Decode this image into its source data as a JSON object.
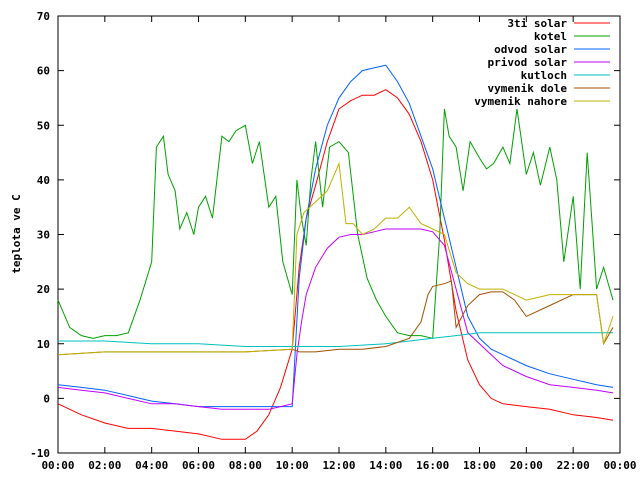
{
  "chart_data": {
    "type": "line",
    "title": "",
    "xlabel": "",
    "ylabel": "teplota ve C",
    "xlim": [
      0,
      24
    ],
    "ylim": [
      -10,
      70
    ],
    "xticks": [
      "00:00",
      "02:00",
      "04:00",
      "06:00",
      "08:00",
      "10:00",
      "12:00",
      "14:00",
      "16:00",
      "18:00",
      "20:00",
      "22:00",
      "00:00"
    ],
    "yticks": [
      "-10",
      "0",
      "10",
      "20",
      "30",
      "40",
      "50",
      "60",
      "70"
    ],
    "legend_position": "top-right",
    "grid": false,
    "series": [
      {
        "name": "3ti solar",
        "color": "#ff0000",
        "x": [
          0,
          1,
          2,
          3,
          4,
          5,
          6,
          7,
          8,
          8.5,
          9,
          9.5,
          10,
          10.3,
          10.6,
          11,
          11.5,
          12,
          12.5,
          13,
          13.5,
          14,
          14.5,
          15,
          15.5,
          16,
          16.5,
          17,
          17.5,
          18,
          18.5,
          19,
          20,
          21,
          22,
          23,
          23.7
        ],
        "y": [
          -1,
          -3,
          -4.5,
          -5.5,
          -5.5,
          -6,
          -6.5,
          -7.5,
          -7.5,
          -6,
          -3,
          2,
          9,
          24,
          33,
          39,
          47,
          53,
          54.5,
          55.5,
          55.5,
          56.5,
          55,
          52,
          47,
          40,
          29,
          16,
          7,
          2.5,
          0,
          -1,
          -1.5,
          -2,
          -3,
          -3.5,
          -4
        ]
      },
      {
        "name": "kotel",
        "color": "#00a000",
        "x": [
          0,
          0.5,
          1,
          1.5,
          2,
          2.5,
          3,
          3.5,
          4,
          4.2,
          4.5,
          4.7,
          5,
          5.2,
          5.5,
          5.8,
          6,
          6.3,
          6.6,
          7,
          7.3,
          7.6,
          8,
          8.3,
          8.6,
          9,
          9.3,
          9.6,
          10,
          10.2,
          10.4,
          10.6,
          10.8,
          11,
          11.3,
          11.6,
          12,
          12.4,
          12.8,
          13.2,
          13.6,
          14,
          14.5,
          15,
          15.5,
          16,
          16.3,
          16.5,
          16.7,
          17,
          17.3,
          17.6,
          18,
          18.3,
          18.6,
          19,
          19.3,
          19.6,
          20,
          20.3,
          20.6,
          21,
          21.3,
          21.6,
          22,
          22.3,
          22.6,
          23,
          23.3,
          23.7
        ],
        "y": [
          18,
          13,
          11.5,
          11,
          11.5,
          11.5,
          12,
          18,
          25,
          46,
          48,
          41,
          38,
          31,
          34,
          30,
          35,
          37,
          33,
          48,
          47,
          49,
          50,
          43,
          47,
          35,
          37,
          25,
          19,
          40,
          33,
          28,
          40,
          47,
          35,
          46,
          47,
          45,
          30,
          22,
          18,
          15,
          12,
          11.5,
          11.5,
          11,
          30,
          53,
          48,
          46,
          38,
          47,
          44,
          42,
          43,
          46,
          43,
          53,
          41,
          45,
          39,
          46,
          40,
          25,
          37,
          20,
          45,
          20,
          24,
          18
        ]
      },
      {
        "name": "odvod solar",
        "color": "#0060ff",
        "x": [
          0,
          1,
          2,
          3,
          4,
          5,
          6,
          7,
          8,
          9,
          9.5,
          10,
          10.3,
          10.6,
          11,
          11.5,
          12,
          12.5,
          13,
          13.5,
          14,
          14.5,
          15,
          15.5,
          16,
          16.5,
          17,
          17.5,
          18,
          18.5,
          19,
          20,
          21,
          22,
          23,
          23.7
        ],
        "y": [
          2.5,
          2,
          1.5,
          0.5,
          -0.5,
          -1,
          -1.5,
          -1.5,
          -1.5,
          -1.5,
          -1.5,
          -1.5,
          22,
          33,
          42,
          50,
          55,
          58,
          60,
          60.5,
          61,
          58,
          54,
          48,
          42,
          33,
          24,
          15,
          11,
          9,
          8,
          6,
          4.5,
          3.5,
          2.5,
          2
        ]
      },
      {
        "name": "privod solar",
        "color": "#c000ff",
        "x": [
          0,
          1,
          2,
          3,
          4,
          5,
          6,
          7,
          8,
          9,
          9.5,
          10,
          10.2,
          10.4,
          10.6,
          11,
          11.5,
          12,
          12.5,
          13,
          13.5,
          14,
          14.5,
          15,
          15.5,
          16,
          16.5,
          17,
          17.5,
          18,
          18.5,
          19,
          20,
          21,
          22,
          23,
          23.7
        ],
        "y": [
          2,
          1.5,
          1,
          0,
          -1,
          -1,
          -1.5,
          -2,
          -2,
          -2,
          -1.5,
          -1,
          8,
          14,
          19,
          24,
          27.5,
          29.5,
          30,
          30,
          30.5,
          31,
          31,
          31,
          31,
          30.5,
          28,
          20,
          12,
          10,
          8,
          6,
          4,
          2.5,
          2,
          1.5,
          1
        ]
      },
      {
        "name": "kutloch",
        "color": "#00c0c0",
        "x": [
          0,
          2,
          4,
          6,
          8,
          10,
          12,
          14,
          16,
          17,
          18,
          20,
          22,
          23.7
        ],
        "y": [
          10.5,
          10.5,
          10,
          10,
          9.5,
          9.5,
          9.5,
          10,
          11,
          11.5,
          12,
          12,
          12,
          12
        ]
      },
      {
        "name": "vymenik dole",
        "color": "#a05000",
        "x": [
          0,
          2,
          4,
          6,
          8,
          10,
          10.3,
          10.6,
          11,
          12,
          13,
          14,
          15,
          15.5,
          15.8,
          16,
          16.5,
          16.8,
          17,
          17.5,
          18,
          18.5,
          19,
          19.5,
          20,
          21,
          22,
          23,
          23.3,
          23.7
        ],
        "y": [
          8,
          8.5,
          8.5,
          8.5,
          8.5,
          9,
          8.5,
          8.5,
          8.5,
          9,
          9,
          9.5,
          11,
          14,
          19,
          20.5,
          21,
          21.5,
          13,
          17,
          19,
          19.5,
          19.5,
          18,
          15,
          17,
          19,
          19,
          10,
          13
        ]
      },
      {
        "name": "vymenik nahore",
        "color": "#c0b000",
        "x": [
          0,
          2,
          4,
          6,
          8,
          10,
          10.2,
          10.5,
          11,
          11.5,
          12,
          12.3,
          12.6,
          13,
          13.5,
          14,
          14.5,
          15,
          15.5,
          16,
          16.5,
          17,
          17.5,
          18,
          19,
          20,
          21,
          22,
          23,
          23.3,
          23.7
        ],
        "y": [
          8,
          8.5,
          8.5,
          8.5,
          8.5,
          9,
          30,
          34,
          36,
          38,
          43,
          32,
          32,
          30,
          31,
          33,
          33,
          35,
          32,
          31,
          30,
          23,
          21,
          20,
          20,
          18,
          19,
          19,
          19,
          10,
          15
        ]
      }
    ]
  }
}
